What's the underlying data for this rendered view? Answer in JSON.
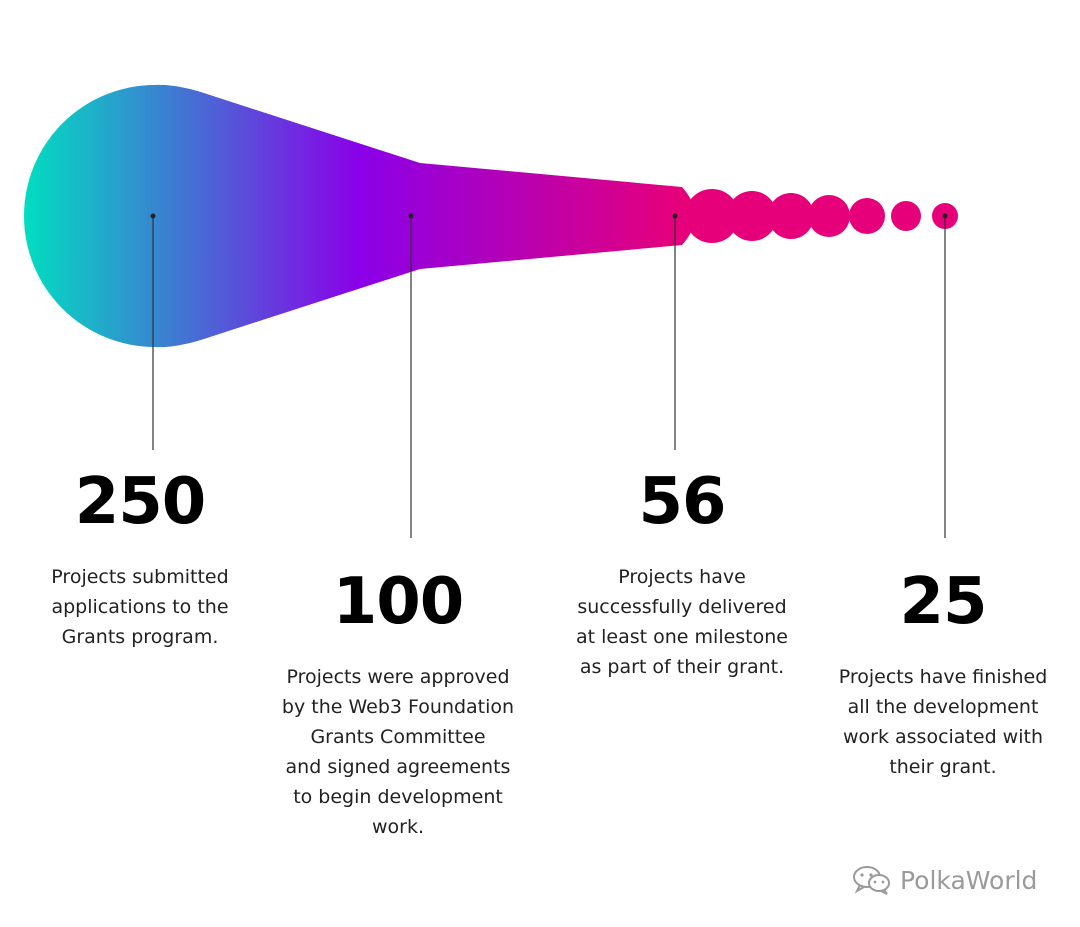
{
  "colors": {
    "teal": "#00e0c0",
    "purple": "#8a00e8",
    "pink": "#e6007a",
    "line": "#333333"
  },
  "stats": [
    {
      "value": "250",
      "description": "Projects submitted\napplications to the\nGrants program."
    },
    {
      "value": "100",
      "description": "Projects were approved\nby the Web3 Foundation\nGrants Committee\nand signed agreements\nto begin development\nwork."
    },
    {
      "value": "56",
      "description": "Projects have\nsuccessfully delivered\nat least one milestone\nas part of their grant."
    },
    {
      "value": "25",
      "description": "Projects have finished\nall the development\nwork associated with\ntheir grant."
    }
  ],
  "watermark": {
    "icon": "wechat-icon",
    "text": "PolkaWorld"
  }
}
